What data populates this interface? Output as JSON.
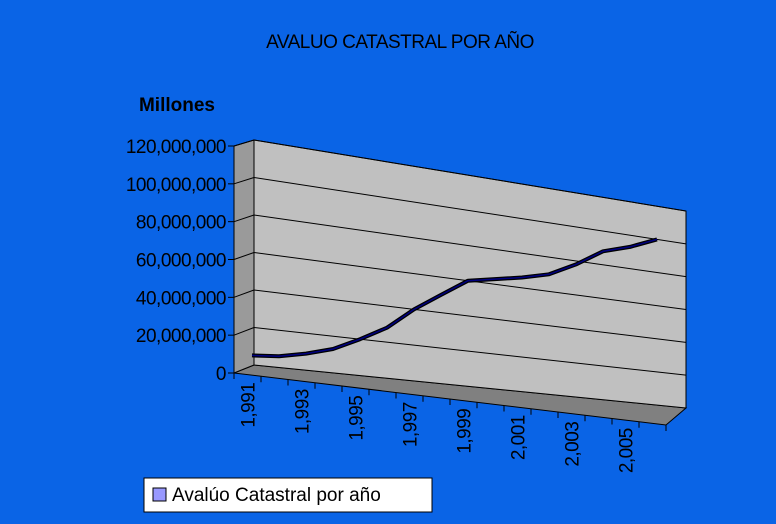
{
  "colors": {
    "background": "#0a64e6",
    "plot_wall": "#c0c0c0",
    "floor": "#808080",
    "line": "#000080",
    "legend_swatch": "#9999ff",
    "legend_bg": "#ffffff"
  },
  "chart_data": {
    "type": "line",
    "title": "AVALUO CATASTRAL POR AÑO",
    "ylabel": "Millones",
    "xlabel": "",
    "ylim": [
      0,
      120000000
    ],
    "y_ticks": [
      0,
      20000000,
      40000000,
      60000000,
      80000000,
      100000000,
      120000000
    ],
    "y_tick_labels": [
      "0",
      "20,000,000",
      "40,000,000",
      "60,000,000",
      "80,000,000",
      "100,000,000",
      "120,000,000"
    ],
    "x_tick_labels": [
      "1,991",
      "1,993",
      "1,995",
      "1,997",
      "1,999",
      "2,001",
      "2,003",
      "2,005"
    ],
    "x": [
      1991,
      1992,
      1993,
      1994,
      1995,
      1996,
      1997,
      1998,
      1999,
      2000,
      2001,
      2002,
      2003,
      2004,
      2005,
      2006
    ],
    "series": [
      {
        "name": "Avalúo Catastral por año",
        "values": [
          5000000,
          6000000,
          9000000,
          13000000,
          20000000,
          28000000,
          40000000,
          50000000,
          60000000,
          63000000,
          66000000,
          70000000,
          78000000,
          88000000,
          93000000,
          100000000
        ]
      }
    ],
    "grid": true,
    "legend": "bottom-left"
  }
}
